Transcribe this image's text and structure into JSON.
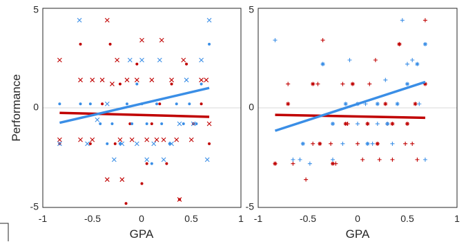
{
  "colors": {
    "red": "#c00000",
    "blue": "#3a8ee6",
    "frame": "#262626",
    "zero_line": "#d9d9d9"
  },
  "chart_data": [
    {
      "type": "scatter",
      "panel": "left",
      "title": "",
      "xlabel": "GPA",
      "ylabel": "Performance",
      "xlim": [
        -1,
        1
      ],
      "ylim": [
        -5,
        5
      ],
      "xticks": [
        "-1",
        "-0.5",
        "0",
        "0.5",
        "1"
      ],
      "yticks": [
        "-5",
        "0",
        "5"
      ],
      "shown_yticks": [
        "5",
        "0",
        "-5"
      ],
      "grid": false,
      "zero_line": true,
      "series": [
        {
          "color": "red",
          "marker": "x",
          "points": [
            [
              -0.83,
              2.4
            ],
            [
              -0.83,
              -1.6
            ],
            [
              -0.62,
              1.4
            ],
            [
              -0.62,
              -1.6
            ],
            [
              -0.5,
              1.4
            ],
            [
              -0.5,
              -1.6
            ],
            [
              -0.4,
              1.4
            ],
            [
              -0.35,
              4.4
            ],
            [
              -0.35,
              -3.6
            ],
            [
              -0.3,
              1.2
            ],
            [
              -0.25,
              2.4
            ],
            [
              -0.22,
              -1.6
            ],
            [
              -0.2,
              -3.6
            ],
            [
              -0.15,
              1.4
            ],
            [
              -0.1,
              -1.6
            ],
            [
              -0.05,
              1.4
            ],
            [
              0,
              3.4
            ],
            [
              0.05,
              -1.6
            ],
            [
              0.1,
              1.4
            ],
            [
              0.15,
              -1.6
            ],
            [
              0.2,
              3.4
            ],
            [
              0.22,
              -1.6
            ],
            [
              0.3,
              1.4
            ],
            [
              0.35,
              -1.6
            ],
            [
              0.38,
              -4.6
            ],
            [
              0.42,
              2.4
            ],
            [
              0.5,
              -1.6
            ],
            [
              0.6,
              1.4
            ],
            [
              0.65,
              1.4
            ],
            [
              0.68,
              -0.8
            ]
          ]
        },
        {
          "color": "red",
          "marker": "dot",
          "points": [
            [
              -0.83,
              -1.8
            ],
            [
              -0.62,
              3.2
            ],
            [
              -0.52,
              -1.8
            ],
            [
              -0.4,
              0.2
            ],
            [
              -0.32,
              3.2
            ],
            [
              -0.27,
              -1.8
            ],
            [
              -0.22,
              1.2
            ],
            [
              -0.16,
              -4.8
            ],
            [
              -0.12,
              -0.8
            ],
            [
              -0.05,
              2.2
            ],
            [
              0,
              -3.8
            ],
            [
              0.05,
              -2.8
            ],
            [
              0.1,
              -0.8
            ],
            [
              0.18,
              0.2
            ],
            [
              0.25,
              -2.8
            ],
            [
              0.3,
              1.2
            ],
            [
              0.38,
              -4.6
            ],
            [
              0.45,
              2.2
            ],
            [
              0.52,
              -0.8
            ],
            [
              0.6,
              0.2
            ],
            [
              0.68,
              -1.8
            ]
          ]
        },
        {
          "color": "blue",
          "marker": "x",
          "points": [
            [
              -0.83,
              -1.8
            ],
            [
              -0.63,
              4.4
            ],
            [
              -0.55,
              -1.8
            ],
            [
              -0.45,
              -0.6
            ],
            [
              -0.35,
              0.2
            ],
            [
              -0.28,
              -2.6
            ],
            [
              -0.2,
              -1.8
            ],
            [
              -0.12,
              2.4
            ],
            [
              -0.05,
              -1.8
            ],
            [
              0,
              2.4
            ],
            [
              0.05,
              -2.6
            ],
            [
              0.12,
              -1.8
            ],
            [
              0.18,
              2.4
            ],
            [
              0.22,
              -2.6
            ],
            [
              0.3,
              -1.8
            ],
            [
              0.38,
              -0.8
            ],
            [
              0.45,
              1.4
            ],
            [
              0.52,
              -0.8
            ],
            [
              0.6,
              2.4
            ],
            [
              0.66,
              -2.6
            ],
            [
              0.68,
              4.4
            ]
          ]
        },
        {
          "color": "blue",
          "marker": "dot",
          "points": [
            [
              -0.83,
              0.2
            ],
            [
              -0.62,
              0.2
            ],
            [
              -0.52,
              0.2
            ],
            [
              -0.42,
              -0.8
            ],
            [
              -0.35,
              -1.8
            ],
            [
              -0.3,
              -0.8
            ],
            [
              -0.22,
              -1.8
            ],
            [
              -0.15,
              0.2
            ],
            [
              -0.1,
              -0.8
            ],
            [
              -0.05,
              1.2
            ],
            [
              0,
              0.2
            ],
            [
              0.05,
              -0.8
            ],
            [
              0.1,
              -2.8
            ],
            [
              0.15,
              0.2
            ],
            [
              0.2,
              -0.8
            ],
            [
              0.28,
              -1.8
            ],
            [
              0.35,
              0.2
            ],
            [
              0.42,
              -0.8
            ],
            [
              0.48,
              0.2
            ],
            [
              0.55,
              -0.8
            ],
            [
              0.6,
              1.2
            ],
            [
              0.68,
              3.2
            ]
          ]
        }
      ],
      "fit_lines": [
        {
          "color": "red",
          "x": [
            -0.83,
            0.68
          ],
          "y": [
            -0.25,
            -0.45
          ]
        },
        {
          "color": "blue",
          "x": [
            -0.83,
            0.68
          ],
          "y": [
            -0.75,
            1.0
          ]
        }
      ]
    },
    {
      "type": "scatter",
      "panel": "right",
      "title": "",
      "xlabel": "GPA",
      "ylabel": "",
      "xlim": [
        -1,
        1
      ],
      "ylim": [
        -5,
        5
      ],
      "xticks": [
        "-1",
        "-0.5",
        "0",
        "0.5",
        "1"
      ],
      "yticks": [
        "-5",
        "0",
        "5"
      ],
      "shown_yticks": [
        "5",
        "0",
        "-5"
      ],
      "grid": false,
      "zero_line": true,
      "series": [
        {
          "color": "red",
          "marker": "plus",
          "points": [
            [
              -0.83,
              -2.8
            ],
            [
              -0.7,
              1.2
            ],
            [
              -0.65,
              -2.8
            ],
            [
              -0.52,
              -3.6
            ],
            [
              -0.45,
              -1.8
            ],
            [
              -0.4,
              1.2
            ],
            [
              -0.35,
              3.4
            ],
            [
              -0.27,
              -1.8
            ],
            [
              -0.22,
              -2.8
            ],
            [
              -0.15,
              1.2
            ],
            [
              -0.1,
              -0.8
            ],
            [
              0,
              -1.8
            ],
            [
              0.05,
              -2.6
            ],
            [
              0.12,
              1.2
            ],
            [
              0.18,
              2.4
            ],
            [
              0.22,
              -2.6
            ],
            [
              0.3,
              -0.8
            ],
            [
              0.35,
              -2.6
            ],
            [
              0.42,
              3.2
            ],
            [
              0.48,
              -1.8
            ],
            [
              0.55,
              -1.8
            ],
            [
              0.6,
              -2.6
            ],
            [
              0.68,
              4.4
            ]
          ]
        },
        {
          "color": "red",
          "marker": "star",
          "points": [
            [
              -0.83,
              -2.8
            ],
            [
              -0.7,
              0.2
            ],
            [
              -0.45,
              1.2
            ],
            [
              -0.38,
              -1.8
            ],
            [
              -0.25,
              -2.8
            ],
            [
              -0.12,
              -0.8
            ],
            [
              -0.05,
              1.2
            ],
            [
              0.1,
              -0.8
            ],
            [
              0.2,
              -1.8
            ],
            [
              0.28,
              0.2
            ],
            [
              0.35,
              -0.8
            ],
            [
              0.42,
              3.2
            ],
            [
              0.5,
              -0.8
            ],
            [
              0.58,
              0.2
            ],
            [
              0.68,
              1.2
            ]
          ]
        },
        {
          "color": "blue",
          "marker": "plus",
          "points": [
            [
              -0.83,
              3.4
            ],
            [
              -0.65,
              -2.6
            ],
            [
              -0.58,
              -2.6
            ],
            [
              -0.48,
              -2.8
            ],
            [
              -0.35,
              2.2
            ],
            [
              -0.25,
              -2.6
            ],
            [
              -0.15,
              -1.8
            ],
            [
              -0.08,
              2.4
            ],
            [
              0,
              -0.8
            ],
            [
              0.08,
              0.2
            ],
            [
              0.15,
              -1.8
            ],
            [
              0.2,
              -0.8
            ],
            [
              0.28,
              1.4
            ],
            [
              0.35,
              -1.8
            ],
            [
              0.45,
              4.4
            ],
            [
              0.5,
              2.2
            ],
            [
              0.55,
              2.4
            ],
            [
              0.62,
              0.2
            ],
            [
              0.68,
              -2.6
            ]
          ]
        },
        {
          "color": "blue",
          "marker": "star",
          "points": [
            [
              -0.55,
              -1.8
            ],
            [
              -0.35,
              2.2
            ],
            [
              -0.25,
              -0.8
            ],
            [
              -0.12,
              0.2
            ],
            [
              0,
              0.2
            ],
            [
              0.1,
              -1.8
            ],
            [
              0.2,
              0.2
            ],
            [
              0.3,
              -0.8
            ],
            [
              0.4,
              0.2
            ],
            [
              0.5,
              1.2
            ],
            [
              0.6,
              2.2
            ],
            [
              0.68,
              3.2
            ]
          ]
        }
      ],
      "fit_lines": [
        {
          "color": "red",
          "x": [
            -0.83,
            0.68
          ],
          "y": [
            -0.35,
            -0.5
          ]
        },
        {
          "color": "blue",
          "x": [
            -0.83,
            0.68
          ],
          "y": [
            -1.15,
            1.3
          ]
        }
      ]
    }
  ]
}
